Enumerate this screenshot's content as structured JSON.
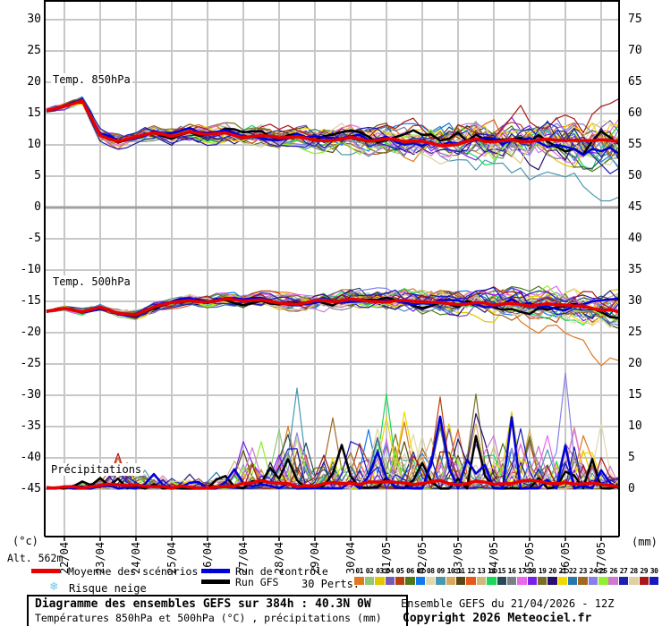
{
  "labels": {
    "alt": "Alt. 562m",
    "left_unit": "(°c)",
    "right_unit": "(mm)",
    "temp850": "Temp. 850hPa",
    "temp500": "Temp. 500hPa",
    "precip": "Précipitations"
  },
  "legend": {
    "mean": "Moyenne des scénarios",
    "control": "Run de contrôle",
    "gfs": "Run GFS",
    "perts": "30 Perts.",
    "snow": "Risque neige",
    "snow_icon": "❄"
  },
  "footer": {
    "box_title": "Diagramme des ensembles GEFS sur 384h : 40.3N 0W",
    "box_subtitle": "Températures 850hPa et 500hPa (°C) , précipitations (mm)",
    "run_info": "Ensemble GEFS du 21/04/2026 - 12Z",
    "copyright": "Copyright 2026 Meteociel.fr"
  },
  "chart_data": {
    "type": "line",
    "title": "Diagramme des ensembles GEFS sur 384h : 40.3N 0W",
    "x_labels": [
      "22/04",
      "23/04",
      "24/04",
      "25/04",
      "26/04",
      "27/04",
      "28/04",
      "29/04",
      "30/04",
      "01/05",
      "02/05",
      "03/05",
      "04/05",
      "05/05",
      "06/05",
      "07/05"
    ],
    "x_hours_range": [
      0,
      384
    ],
    "left_axis": {
      "unit": "(°c)",
      "ticks": [
        30,
        25,
        20,
        15,
        10,
        5,
        0,
        -5,
        -10,
        -15,
        -20,
        -25,
        -30,
        -35,
        -40,
        -45
      ],
      "emphasized_value": 0
    },
    "right_axis": {
      "unit": "(mm)",
      "ticks": [
        75,
        70,
        65,
        60,
        55,
        50,
        45,
        40,
        35,
        30,
        25,
        20,
        15,
        10,
        5,
        0
      ]
    },
    "grid": true,
    "step_hours": 12,
    "panels": {
      "temp850": {
        "label": "Temp. 850hPa",
        "mean": [
          15.5,
          16.1,
          17.0,
          11.5,
          10.5,
          11.3,
          12.0,
          11.4,
          12.1,
          11.6,
          11.9,
          11.3,
          11.6,
          11.1,
          11.5,
          11.0,
          10.8,
          11.2,
          10.6,
          10.9,
          10.4,
          10.7,
          10.2,
          10.5,
          10.8,
          10.3,
          10.6,
          10.1,
          10.6,
          10.9,
          10.4,
          10.7,
          10.3
        ],
        "spread": [
          0.5,
          0.6,
          0.8,
          1.2,
          1.2,
          1.3,
          1.5,
          1.5,
          1.6,
          1.7,
          1.8,
          1.9,
          2.0,
          2.1,
          2.2,
          2.3,
          2.4,
          2.6,
          2.7,
          2.9,
          3.0,
          3.2,
          3.3,
          3.5,
          3.6,
          3.8,
          4.0,
          4.2,
          4.4,
          4.6,
          4.8,
          5.0,
          5.2
        ]
      },
      "temp500": {
        "label": "Temp. 500hPa",
        "mean": [
          -16.6,
          -16.1,
          -16.7,
          -16.0,
          -16.9,
          -17.1,
          -15.9,
          -15.2,
          -14.8,
          -15.1,
          -14.6,
          -15.0,
          -14.7,
          -15.1,
          -15.3,
          -14.8,
          -15.0,
          -14.6,
          -14.9,
          -15.1,
          -14.8,
          -15.2,
          -15.0,
          -15.3,
          -15.0,
          -15.4,
          -15.2,
          -15.6,
          -15.3,
          -15.7,
          -16.0,
          -16.3,
          -16.5
        ],
        "spread": [
          0.4,
          0.4,
          0.5,
          0.6,
          0.7,
          0.8,
          0.9,
          1.0,
          1.1,
          1.2,
          1.2,
          1.3,
          1.4,
          1.5,
          1.5,
          1.6,
          1.7,
          1.8,
          1.9,
          2.0,
          2.1,
          2.2,
          2.3,
          2.4,
          2.5,
          2.7,
          2.8,
          3.0,
          3.1,
          3.3,
          3.4,
          3.6,
          3.8
        ]
      },
      "precip": {
        "label": "Précipitations",
        "mean": [
          0.2,
          0.2,
          0.3,
          0.5,
          0.8,
          0.7,
          0.4,
          0.3,
          0.4,
          0.3,
          0.5,
          0.8,
          1.2,
          0.8,
          0.6,
          0.5,
          1.0,
          0.8,
          1.0,
          1.3,
          1.0,
          0.8,
          1.2,
          0.9,
          1.2,
          0.8,
          0.9,
          1.4,
          0.9,
          1.1,
          0.9,
          0.8,
          0.5
        ],
        "member_max": [
          0.5,
          0.8,
          1.5,
          2.5,
          6,
          5,
          3,
          2.5,
          3,
          2.5,
          4,
          8,
          8,
          10,
          17,
          5,
          12,
          8,
          10,
          16,
          13,
          9,
          15.5,
          10,
          16,
          9,
          13,
          10,
          9,
          19.5,
          9,
          11,
          4
        ],
        "gfs_spike": {
          "t_index6h": 48,
          "value": 8.5
        },
        "control_spike": {
          "t_index6h": 52,
          "value": 11.5
        }
      }
    },
    "series_style": {
      "mean": {
        "name": "Moyenne des scénarios",
        "color": "#e80000",
        "width": 3.5
      },
      "control": {
        "name": "Run de contrôle",
        "color": "#0000d8",
        "width": 2.5
      },
      "gfs": {
        "name": "Run GFS",
        "color": "#000000",
        "width": 2.5
      },
      "member_width": 1.2
    },
    "members": [
      {
        "id": "01",
        "color": "#e07820"
      },
      {
        "id": "02",
        "color": "#90c878"
      },
      {
        "id": "03",
        "color": "#e0c800"
      },
      {
        "id": "04",
        "color": "#7858b8"
      },
      {
        "id": "05",
        "color": "#b84010"
      },
      {
        "id": "06",
        "color": "#507818"
      },
      {
        "id": "07",
        "color": "#1078f0"
      },
      {
        "id": "08",
        "color": "#e0d8b0"
      },
      {
        "id": "09",
        "color": "#4898b0"
      },
      {
        "id": "10",
        "color": "#d8a860"
      },
      {
        "id": "11",
        "color": "#584818"
      },
      {
        "id": "12",
        "color": "#e85818"
      },
      {
        "id": "13",
        "color": "#d0b878"
      },
      {
        "id": "14",
        "color": "#18d858"
      },
      {
        "id": "15",
        "color": "#284858"
      },
      {
        "id": "16",
        "color": "#788088"
      },
      {
        "id": "17",
        "color": "#e868e8"
      },
      {
        "id": "18",
        "color": "#7820e8"
      },
      {
        "id": "19",
        "color": "#787028"
      },
      {
        "id": "20",
        "color": "#281070"
      },
      {
        "id": "21",
        "color": "#f0d800"
      },
      {
        "id": "22",
        "color": "#2878b0"
      },
      {
        "id": "23",
        "color": "#a06820"
      },
      {
        "id": "24",
        "color": "#8880e8"
      },
      {
        "id": "25",
        "color": "#90f030"
      },
      {
        "id": "26",
        "color": "#d078d0"
      },
      {
        "id": "27",
        "color": "#2020b0"
      },
      {
        "id": "28",
        "color": "#e0d0a8"
      },
      {
        "id": "29",
        "color": "#a81818"
      },
      {
        "id": "30",
        "color": "#1818c0"
      }
    ],
    "colors": {
      "grid": "#c8c8c8",
      "grid_zero": "#a0a0a0",
      "axis": "#000000",
      "snow_icon": "#6ec6f0"
    }
  }
}
